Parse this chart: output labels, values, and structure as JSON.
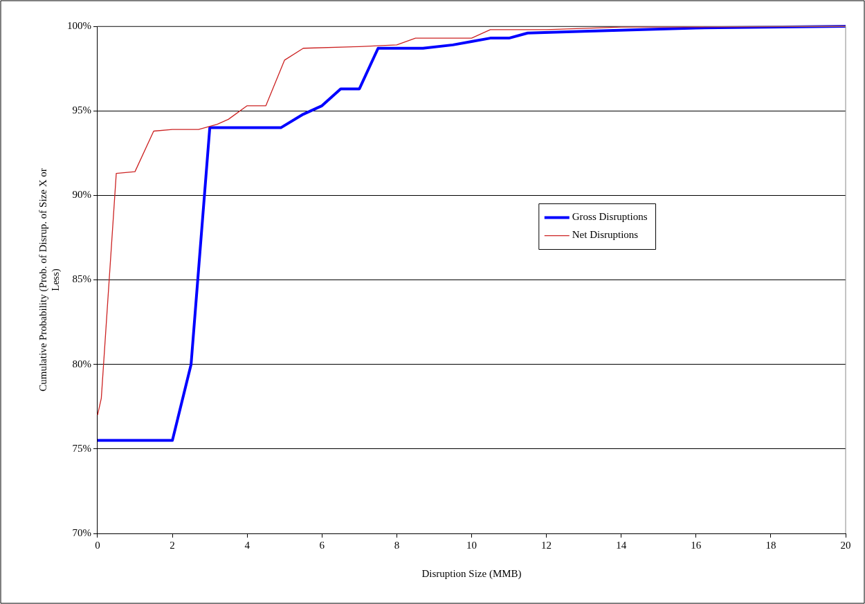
{
  "chart_data": {
    "type": "line",
    "xlabel": "Disruption Size (MMB)",
    "ylabel": "Cumulative Probability (Prob. of Disrup. of Size X or Less)",
    "xlim": [
      0,
      20
    ],
    "xticks": [
      0,
      2,
      4,
      6,
      8,
      10,
      12,
      14,
      16,
      18,
      20
    ],
    "ylim": [
      70,
      100
    ],
    "yticks": [
      {
        "value": 70,
        "label": "70%"
      },
      {
        "value": 75,
        "label": "75%"
      },
      {
        "value": 80,
        "label": "80%"
      },
      {
        "value": 85,
        "label": "85%"
      },
      {
        "value": 90,
        "label": "90%"
      },
      {
        "value": 95,
        "label": "95%"
      },
      {
        "value": 100,
        "label": "100%"
      }
    ],
    "grid": "y",
    "legend": "right",
    "marker": "none",
    "line_style": "solid",
    "series": [
      {
        "name": "Gross Disruptions",
        "color": "#0000ff",
        "x": [
          0,
          2,
          2.5,
          3,
          4.9,
          5.5,
          6,
          6.5,
          7,
          7.5,
          8.7,
          9.5,
          10,
          10.5,
          11,
          11.5,
          13,
          16,
          20
        ],
        "values": [
          75.5,
          75.5,
          80,
          94,
          94,
          94.8,
          95.3,
          96.3,
          96.3,
          98.7,
          98.7,
          98.9,
          99.1,
          99.3,
          99.3,
          99.6,
          99.7,
          99.9,
          100
        ]
      },
      {
        "name": "Net Disruptions",
        "color": "#cc2222",
        "x": [
          0,
          0.1,
          0.5,
          1,
          1.5,
          2,
          2.7,
          3.2,
          3.5,
          4,
          4.5,
          5,
          5.5,
          7,
          8,
          8.5,
          10,
          10.5,
          12,
          14,
          20
        ],
        "values": [
          77,
          78,
          91.3,
          91.4,
          93.8,
          93.9,
          93.9,
          94.2,
          94.5,
          95.3,
          95.3,
          98,
          98.7,
          98.8,
          98.9,
          99.3,
          99.3,
          99.8,
          99.8,
          99.95,
          100
        ]
      }
    ]
  }
}
